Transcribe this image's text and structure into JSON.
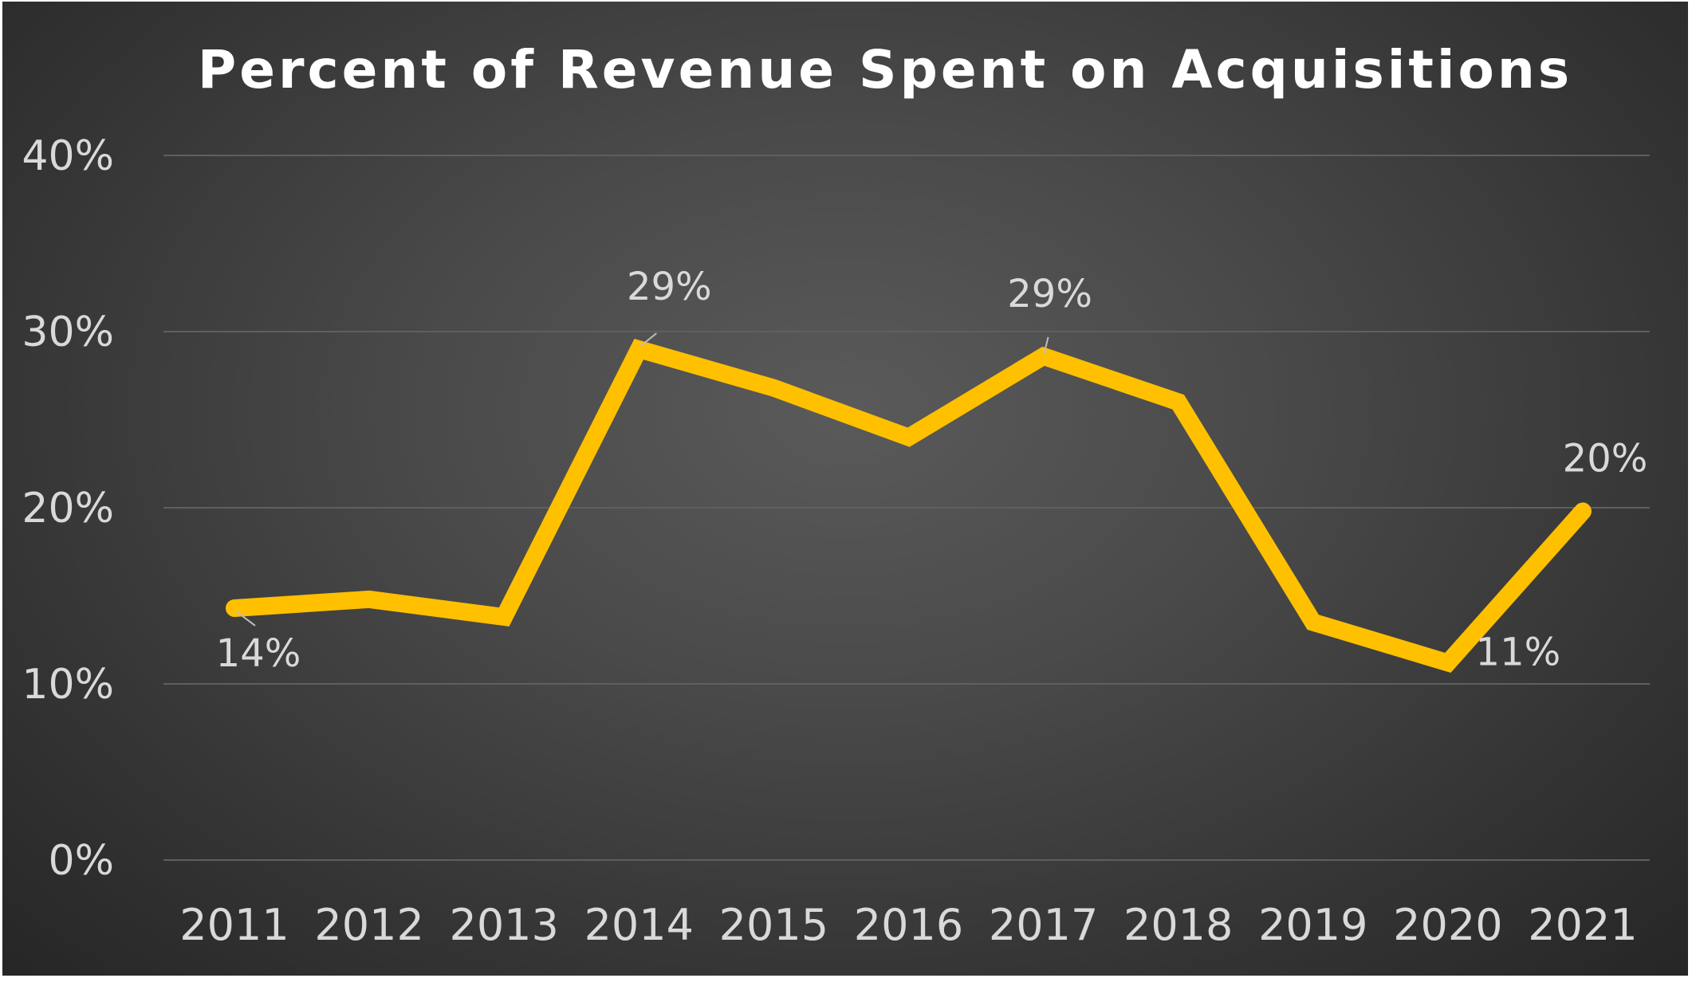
{
  "colors": {
    "line": "#FFC000",
    "grid": "#5f5f5f",
    "text": "#D9D9D9",
    "title": "#FFFFFF",
    "leader": "#BFBFBF"
  },
  "chart_data": {
    "type": "line",
    "title": "Percent of Revenue Spent on Acquisitions",
    "xlabel": "",
    "ylabel": "",
    "categories": [
      "2011",
      "2012",
      "2013",
      "2014",
      "2015",
      "2016",
      "2017",
      "2018",
      "2019",
      "2020",
      "2021"
    ],
    "series": [
      {
        "values": [
          14.3,
          14.8,
          13.8,
          29.0,
          26.8,
          24.0,
          28.6,
          26.0,
          13.5,
          11.2,
          19.8
        ]
      }
    ],
    "ylim": [
      0,
      40
    ],
    "yticks": [
      0,
      10,
      20,
      30,
      40
    ],
    "ytick_labels": [
      "0%",
      "10%",
      "20%",
      "30%",
      "40%"
    ],
    "grid": true,
    "legend": "none",
    "data_labels": [
      {
        "index": 0,
        "text": "14%"
      },
      {
        "index": 3,
        "text": "29%"
      },
      {
        "index": 6,
        "text": "29%"
      },
      {
        "index": 9,
        "text": "11%"
      },
      {
        "index": 10,
        "text": "20%"
      }
    ]
  }
}
